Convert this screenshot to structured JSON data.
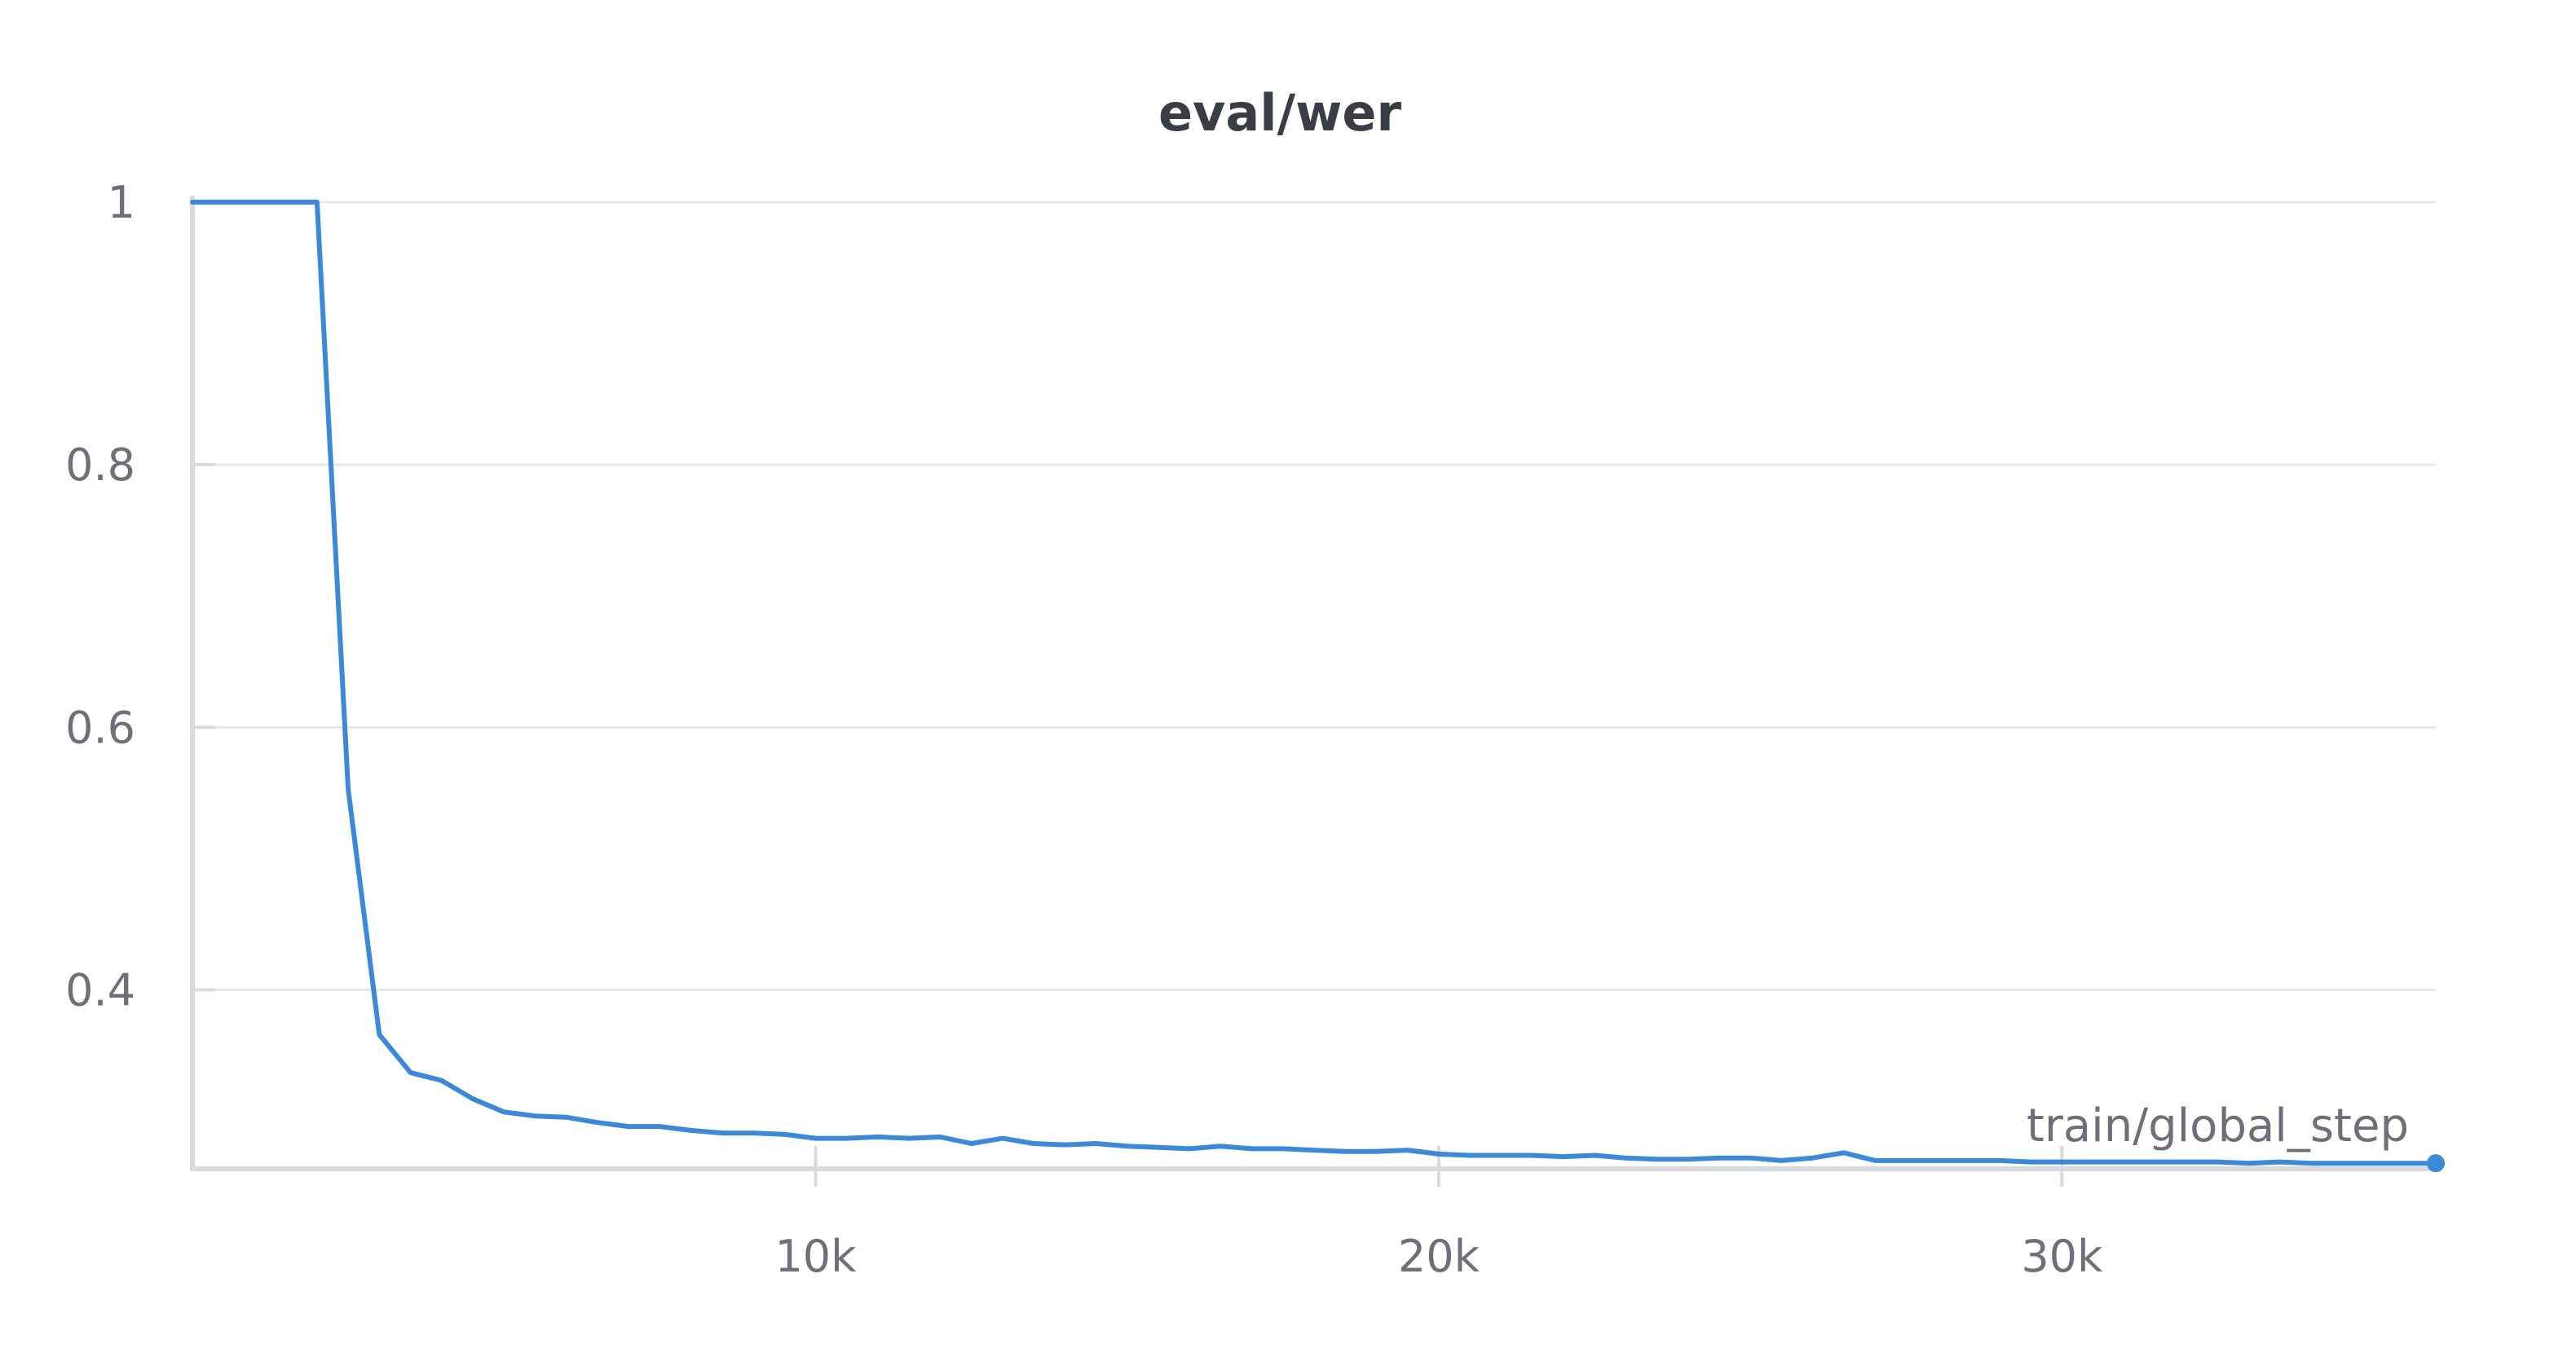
{
  "chart_data": {
    "type": "line",
    "title": "eval/wer",
    "xlabel": "train/global_step",
    "ylabel": "",
    "xlim": [
      0,
      36000
    ],
    "ylim": [
      0.265,
      1.0
    ],
    "grid": true,
    "color": "#3a8ad8",
    "x_ticks": [
      10000,
      20000,
      30000
    ],
    "x_tick_labels": [
      "10k",
      "20k",
      "30k"
    ],
    "y_ticks": [
      0.4,
      0.6,
      0.8,
      1.0
    ],
    "y_tick_labels": [
      "0.4",
      "0.6",
      "0.8",
      "1"
    ],
    "series": [
      {
        "x": [
          0,
          500,
          1000,
          1500,
          2000,
          2500,
          3000,
          3500,
          4000,
          4500,
          5000,
          5500,
          6000,
          6500,
          7000,
          7500,
          8000,
          8500,
          9000,
          9500,
          10000,
          10500,
          11000,
          11500,
          12000,
          12500,
          13000,
          13500,
          14000,
          14500,
          15000,
          15500,
          16000,
          16500,
          17000,
          17500,
          18000,
          18500,
          19000,
          19500,
          20000,
          20500,
          21000,
          21500,
          22000,
          22500,
          23000,
          23500,
          24000,
          24500,
          25000,
          25500,
          26000,
          26500,
          27000,
          27500,
          28000,
          28500,
          29000,
          29500,
          30000,
          30500,
          31000,
          31500,
          32000,
          32500,
          33000,
          33500,
          34000,
          34500,
          35000,
          35500,
          36000
        ],
        "y": [
          1.0,
          1.0,
          1.0,
          1.0,
          1.0,
          0.553,
          0.366,
          0.337,
          0.331,
          0.317,
          0.307,
          0.304,
          0.303,
          0.299,
          0.296,
          0.296,
          0.293,
          0.291,
          0.291,
          0.29,
          0.287,
          0.287,
          0.288,
          0.287,
          0.288,
          0.283,
          0.287,
          0.283,
          0.282,
          0.283,
          0.281,
          0.28,
          0.279,
          0.281,
          0.279,
          0.279,
          0.278,
          0.277,
          0.277,
          0.278,
          0.275,
          0.274,
          0.274,
          0.274,
          0.273,
          0.274,
          0.272,
          0.271,
          0.271,
          0.272,
          0.272,
          0.27,
          0.272,
          0.276,
          0.27,
          0.27,
          0.27,
          0.27,
          0.27,
          0.269,
          0.269,
          0.269,
          0.269,
          0.269,
          0.269,
          0.269,
          0.268,
          0.269,
          0.268,
          0.268,
          0.268,
          0.268,
          0.268
        ]
      }
    ]
  }
}
